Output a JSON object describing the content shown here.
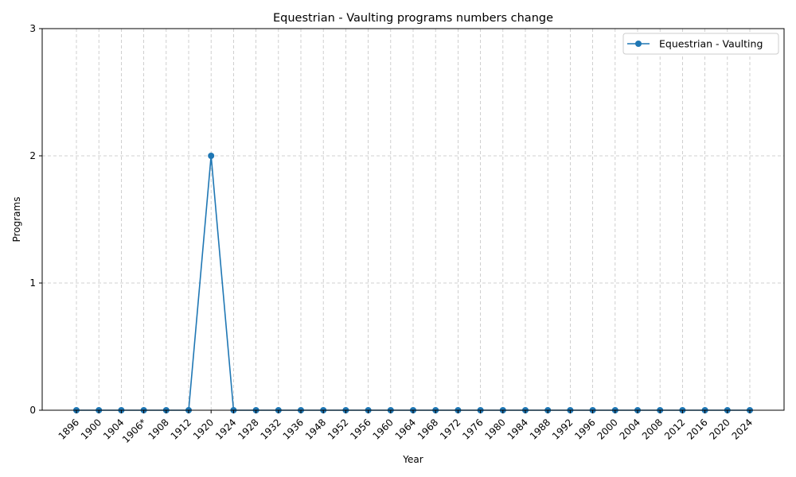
{
  "chart_data": {
    "type": "line",
    "title": "Equestrian - Vaulting programs numbers change",
    "xlabel": "Year",
    "ylabel": "Programs",
    "categories": [
      "1896",
      "1900",
      "1904",
      "1906*",
      "1908",
      "1912",
      "1920",
      "1924",
      "1928",
      "1932",
      "1936",
      "1948",
      "1952",
      "1956",
      "1960",
      "1964",
      "1968",
      "1972",
      "1976",
      "1980",
      "1984",
      "1988",
      "1992",
      "1996",
      "2000",
      "2004",
      "2008",
      "2012",
      "2016",
      "2020",
      "2024"
    ],
    "series": [
      {
        "name": "Equestrian - Vaulting",
        "color": "#1f77b4",
        "values": [
          0,
          0,
          0,
          0,
          0,
          0,
          2,
          0,
          0,
          0,
          0,
          0,
          0,
          0,
          0,
          0,
          0,
          0,
          0,
          0,
          0,
          0,
          0,
          0,
          0,
          0,
          0,
          0,
          0,
          0,
          0
        ]
      }
    ],
    "ylim": [
      0,
      3
    ],
    "yticks": [
      0,
      1,
      2,
      3
    ],
    "grid": true,
    "legend_position": "top-right"
  }
}
